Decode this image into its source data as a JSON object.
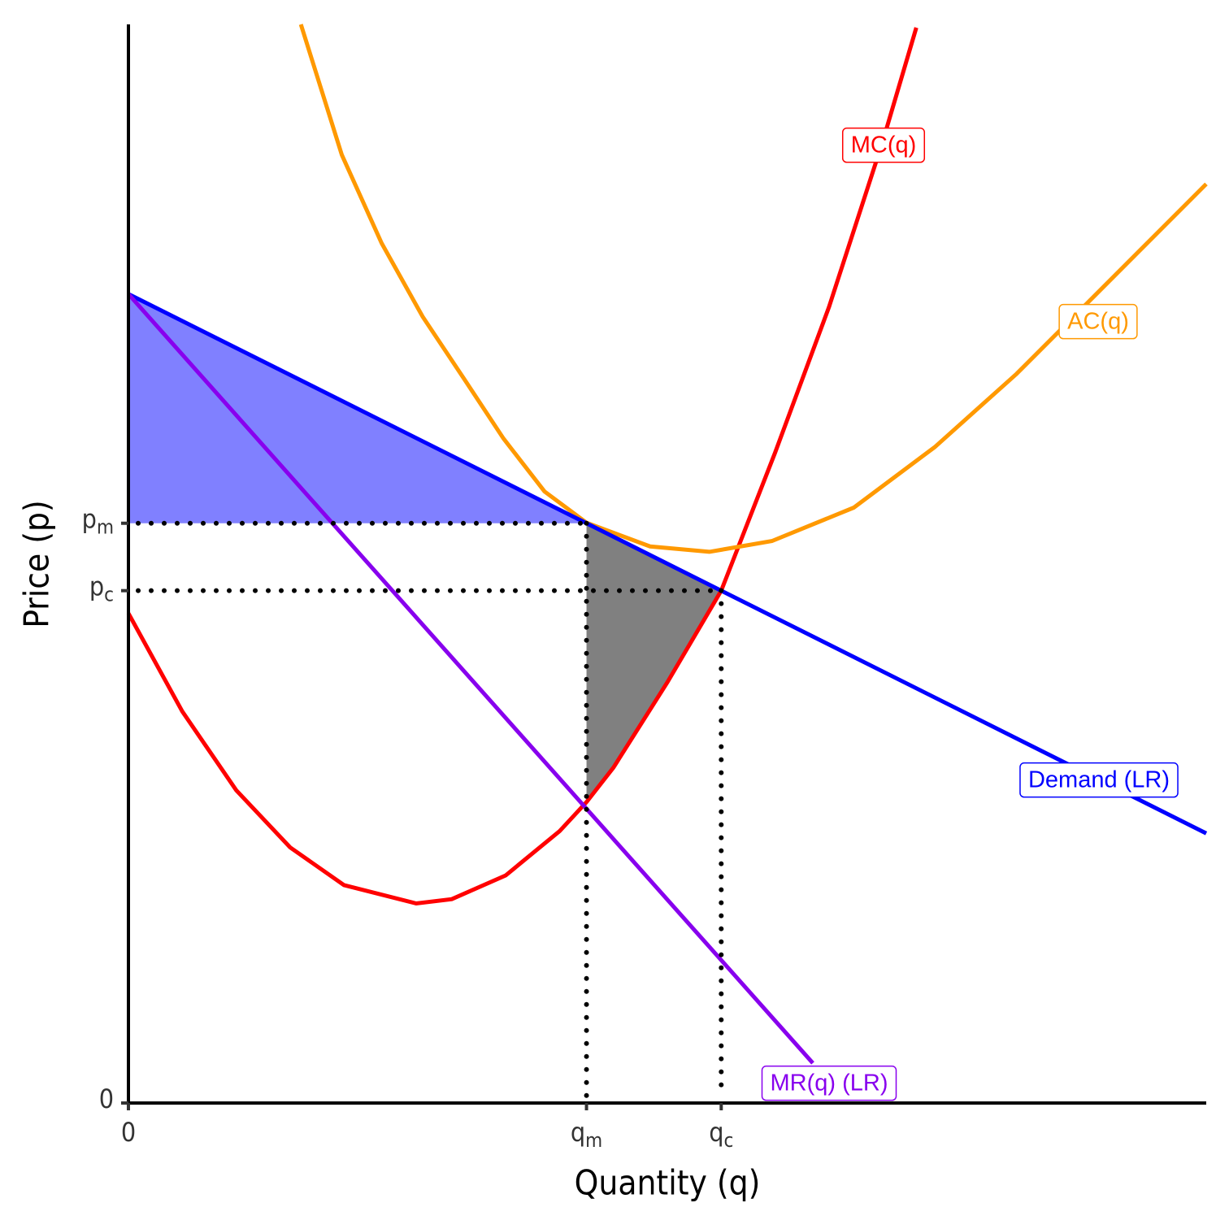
{
  "chart_data": {
    "type": "line",
    "xlabel": "Quantity (q)",
    "ylabel": "Price (p)",
    "xlim": [
      0,
      10
    ],
    "ylim": [
      0,
      10
    ],
    "xticks": [
      0,
      {
        "value": 4.25,
        "label": "qm"
      },
      {
        "value": 5.5,
        "label": "qc"
      }
    ],
    "yticks": [
      0,
      {
        "value": 5.375,
        "label": "pm"
      },
      {
        "value": 4.75,
        "label": "pc"
      }
    ],
    "series": [
      {
        "name": "MC(q)",
        "color": "#ff0000",
        "x": [
          0,
          0.5,
          1,
          1.5,
          2,
          2.67,
          3,
          3.5,
          4,
          4.25,
          4.5,
          5,
          5.5,
          6,
          6.5,
          7,
          7.31
        ],
        "values": [
          4.54,
          3.63,
          2.9,
          2.37,
          2.02,
          1.85,
          1.89,
          2.11,
          2.52,
          2.79,
          3.11,
          3.9,
          4.75,
          6.03,
          7.38,
          8.92,
          9.97
        ]
      },
      {
        "name": "AC(q)",
        "color": "#ff9900",
        "x": [
          1.6,
          1.98,
          2.35,
          2.73,
          3.11,
          3.48,
          3.86,
          4.25,
          4.84,
          5.39,
          5.97,
          6.73,
          7.48,
          8.24,
          8.99,
          10
        ],
        "values": [
          10,
          8.79,
          7.97,
          7.29,
          6.72,
          6.16,
          5.67,
          5.38,
          5.16,
          5.11,
          5.21,
          5.52,
          6.08,
          6.76,
          7.51,
          8.52
        ]
      },
      {
        "name": "Demand (LR)",
        "color": "#0000ff",
        "x": [
          0,
          10
        ],
        "values": [
          7.5,
          2.5
        ]
      },
      {
        "name": "MR(q) (LR)",
        "color": "#8800ee",
        "x": [
          0,
          6.35
        ],
        "values": [
          7.5,
          0.37
        ]
      }
    ]
  }
}
